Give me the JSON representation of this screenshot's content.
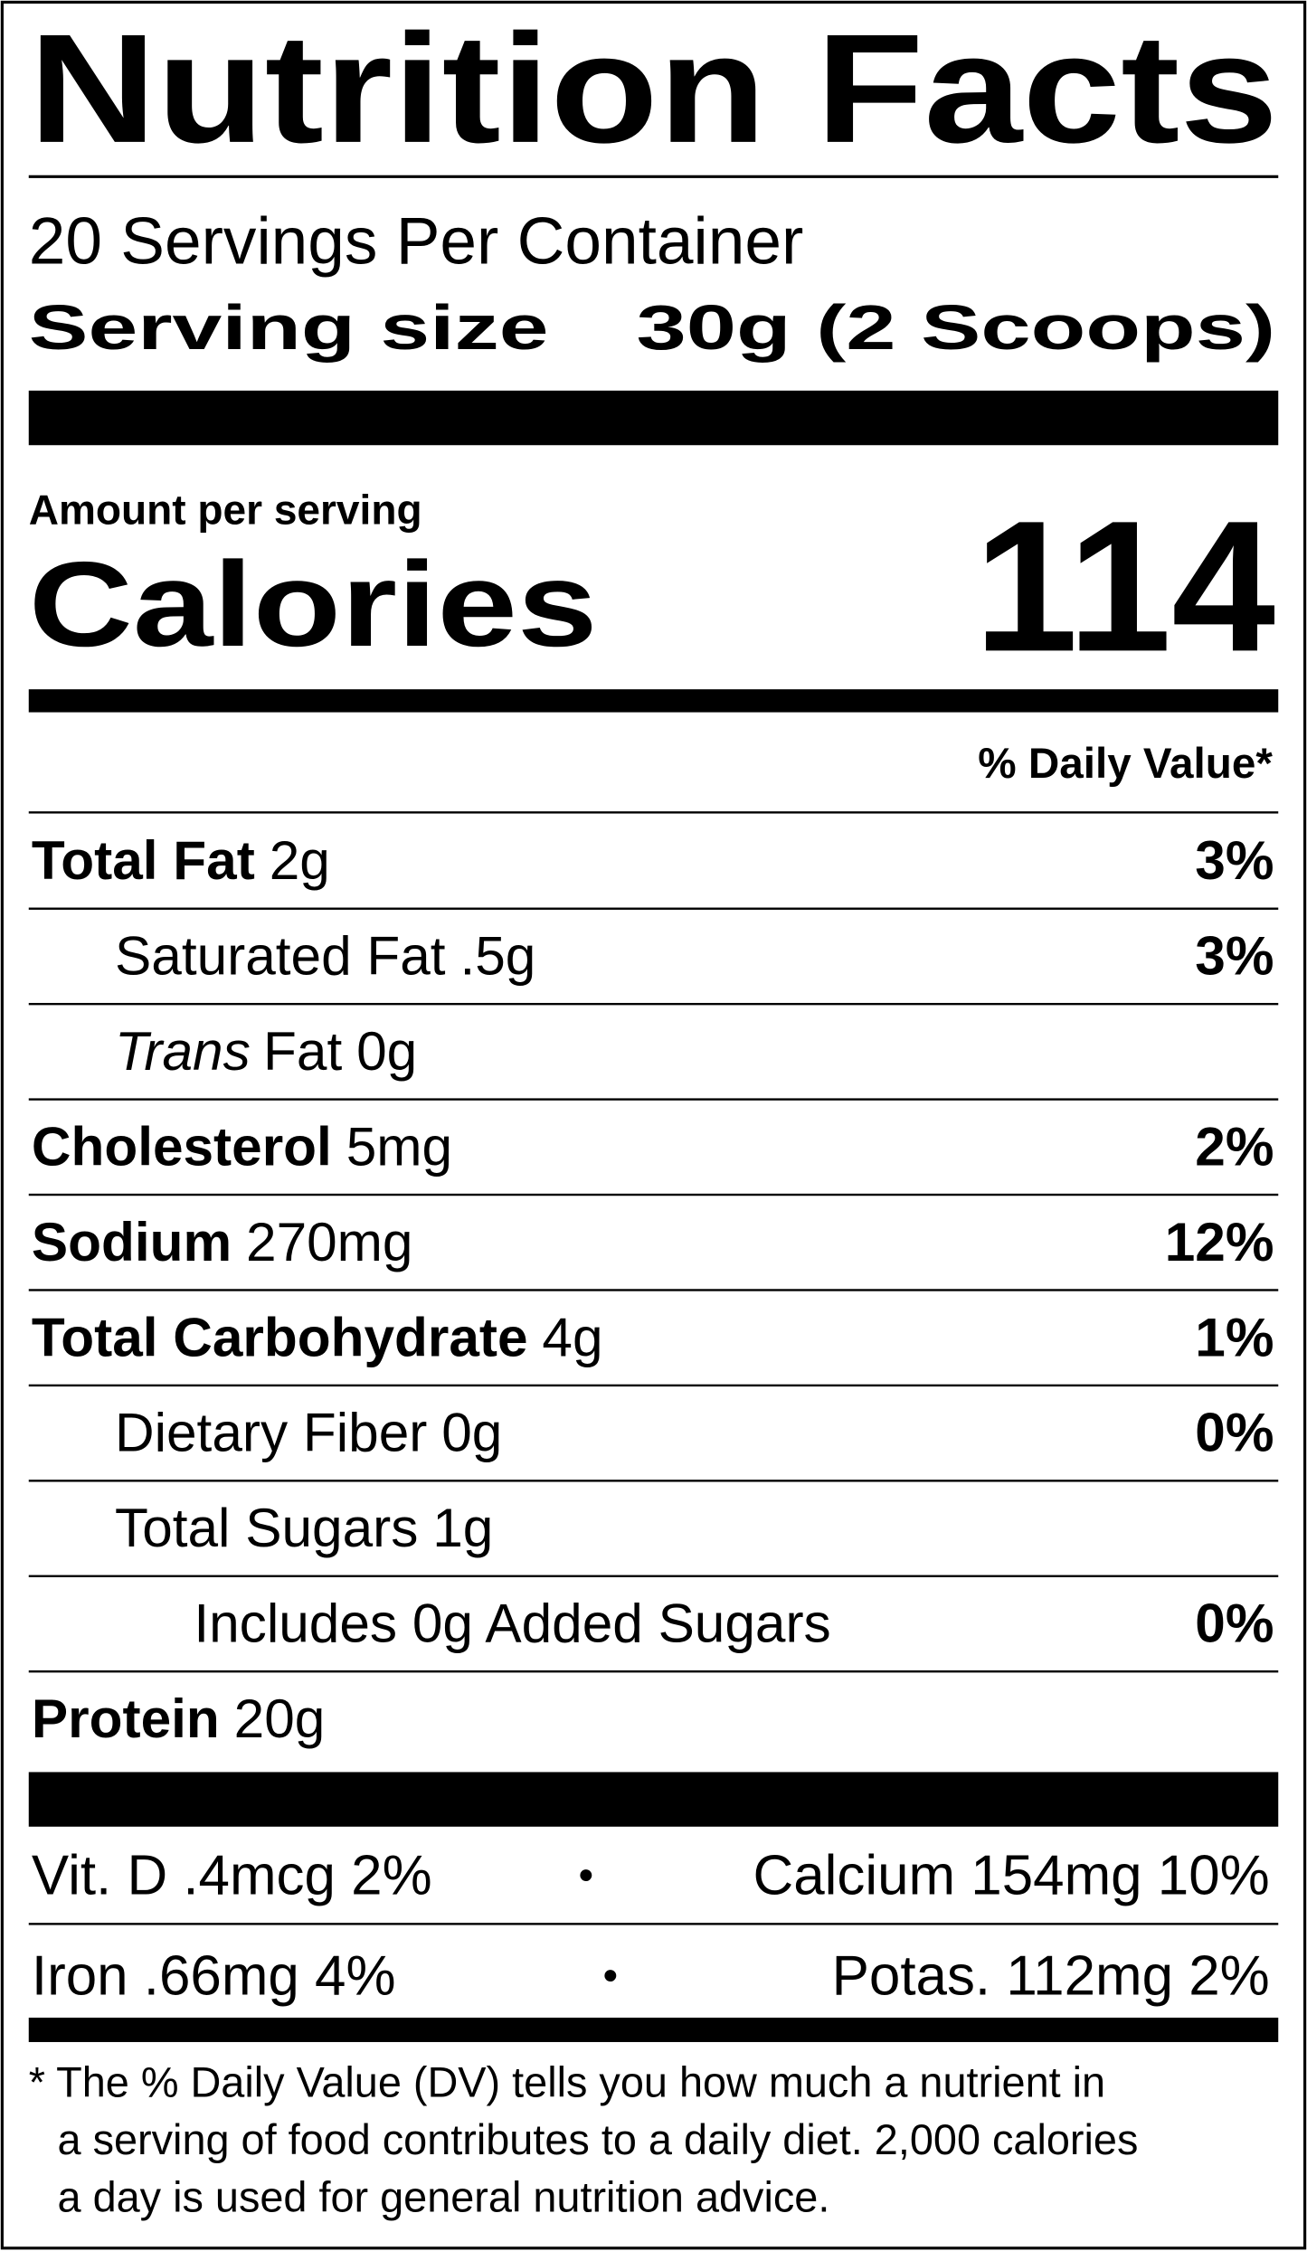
{
  "title": "Nutrition Facts",
  "servings_per_container": "20 Servings Per Container",
  "serving_size": {
    "label": "Serving size",
    "value": "30g (2 Scoops)"
  },
  "amount_per_serving": "Amount per serving",
  "calories": {
    "label": "Calories",
    "value": "114"
  },
  "daily_value_header": "% Daily Value*",
  "nutrients": [
    {
      "name": "Total Fat",
      "amount": "2g",
      "dv": "3%"
    },
    {
      "name": "Saturated Fat",
      "amount": ".5g",
      "dv": "3%"
    },
    {
      "prefix": "Trans",
      "name": "Fat",
      "amount": "0g"
    },
    {
      "name": "Cholesterol",
      "amount": "5mg",
      "dv": "2%"
    },
    {
      "name": "Sodium",
      "amount": "270mg",
      "dv": "12%"
    },
    {
      "name": "Total Carbohydrate",
      "amount": "4g",
      "dv": "1%"
    },
    {
      "name": "Dietary Fiber",
      "amount": "0g",
      "dv": "0%"
    },
    {
      "name": "Total Sugars",
      "amount": "1g"
    },
    {
      "name": "Includes 0g Added Sugars",
      "dv": "0%"
    },
    {
      "name": "Protein",
      "amount": "20g"
    }
  ],
  "vitamins": {
    "separator": "•",
    "rows": [
      [
        "Vit. D .4mcg 2%",
        "Calcium 154mg 10%"
      ],
      [
        "Iron .66mg 4%",
        "Potas. 112mg 2%"
      ]
    ]
  },
  "footnote": [
    "* The % Daily Value (DV) tells you how much a nutrient in",
    "a serving of food contributes to a daily diet. 2,000 calories",
    "a day is used for general nutrition advice."
  ]
}
